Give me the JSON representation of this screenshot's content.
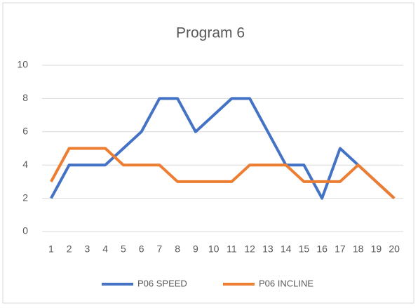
{
  "chart_data": {
    "type": "line",
    "title": "Program 6",
    "categories": [
      "1",
      "2",
      "3",
      "4",
      "5",
      "6",
      "7",
      "8",
      "9",
      "10",
      "11",
      "12",
      "13",
      "14",
      "15",
      "16",
      "17",
      "18",
      "19",
      "20"
    ],
    "series": [
      {
        "name": "P06 SPEED",
        "color": "#4472c4",
        "values": [
          2,
          4,
          4,
          4,
          5,
          6,
          8,
          8,
          6,
          7,
          8,
          8,
          6,
          4,
          4,
          2,
          5,
          4,
          3,
          2
        ]
      },
      {
        "name": "P06 INCLINE",
        "color": "#ed7d31",
        "values": [
          3,
          5,
          5,
          5,
          4,
          4,
          4,
          3,
          3,
          3,
          3,
          4,
          4,
          4,
          3,
          3,
          3,
          4,
          3,
          2
        ]
      }
    ],
    "ylim": [
      0,
      10
    ],
    "yticks": [
      0,
      2,
      4,
      6,
      8,
      10
    ],
    "grid": true,
    "legend": "bottom"
  }
}
